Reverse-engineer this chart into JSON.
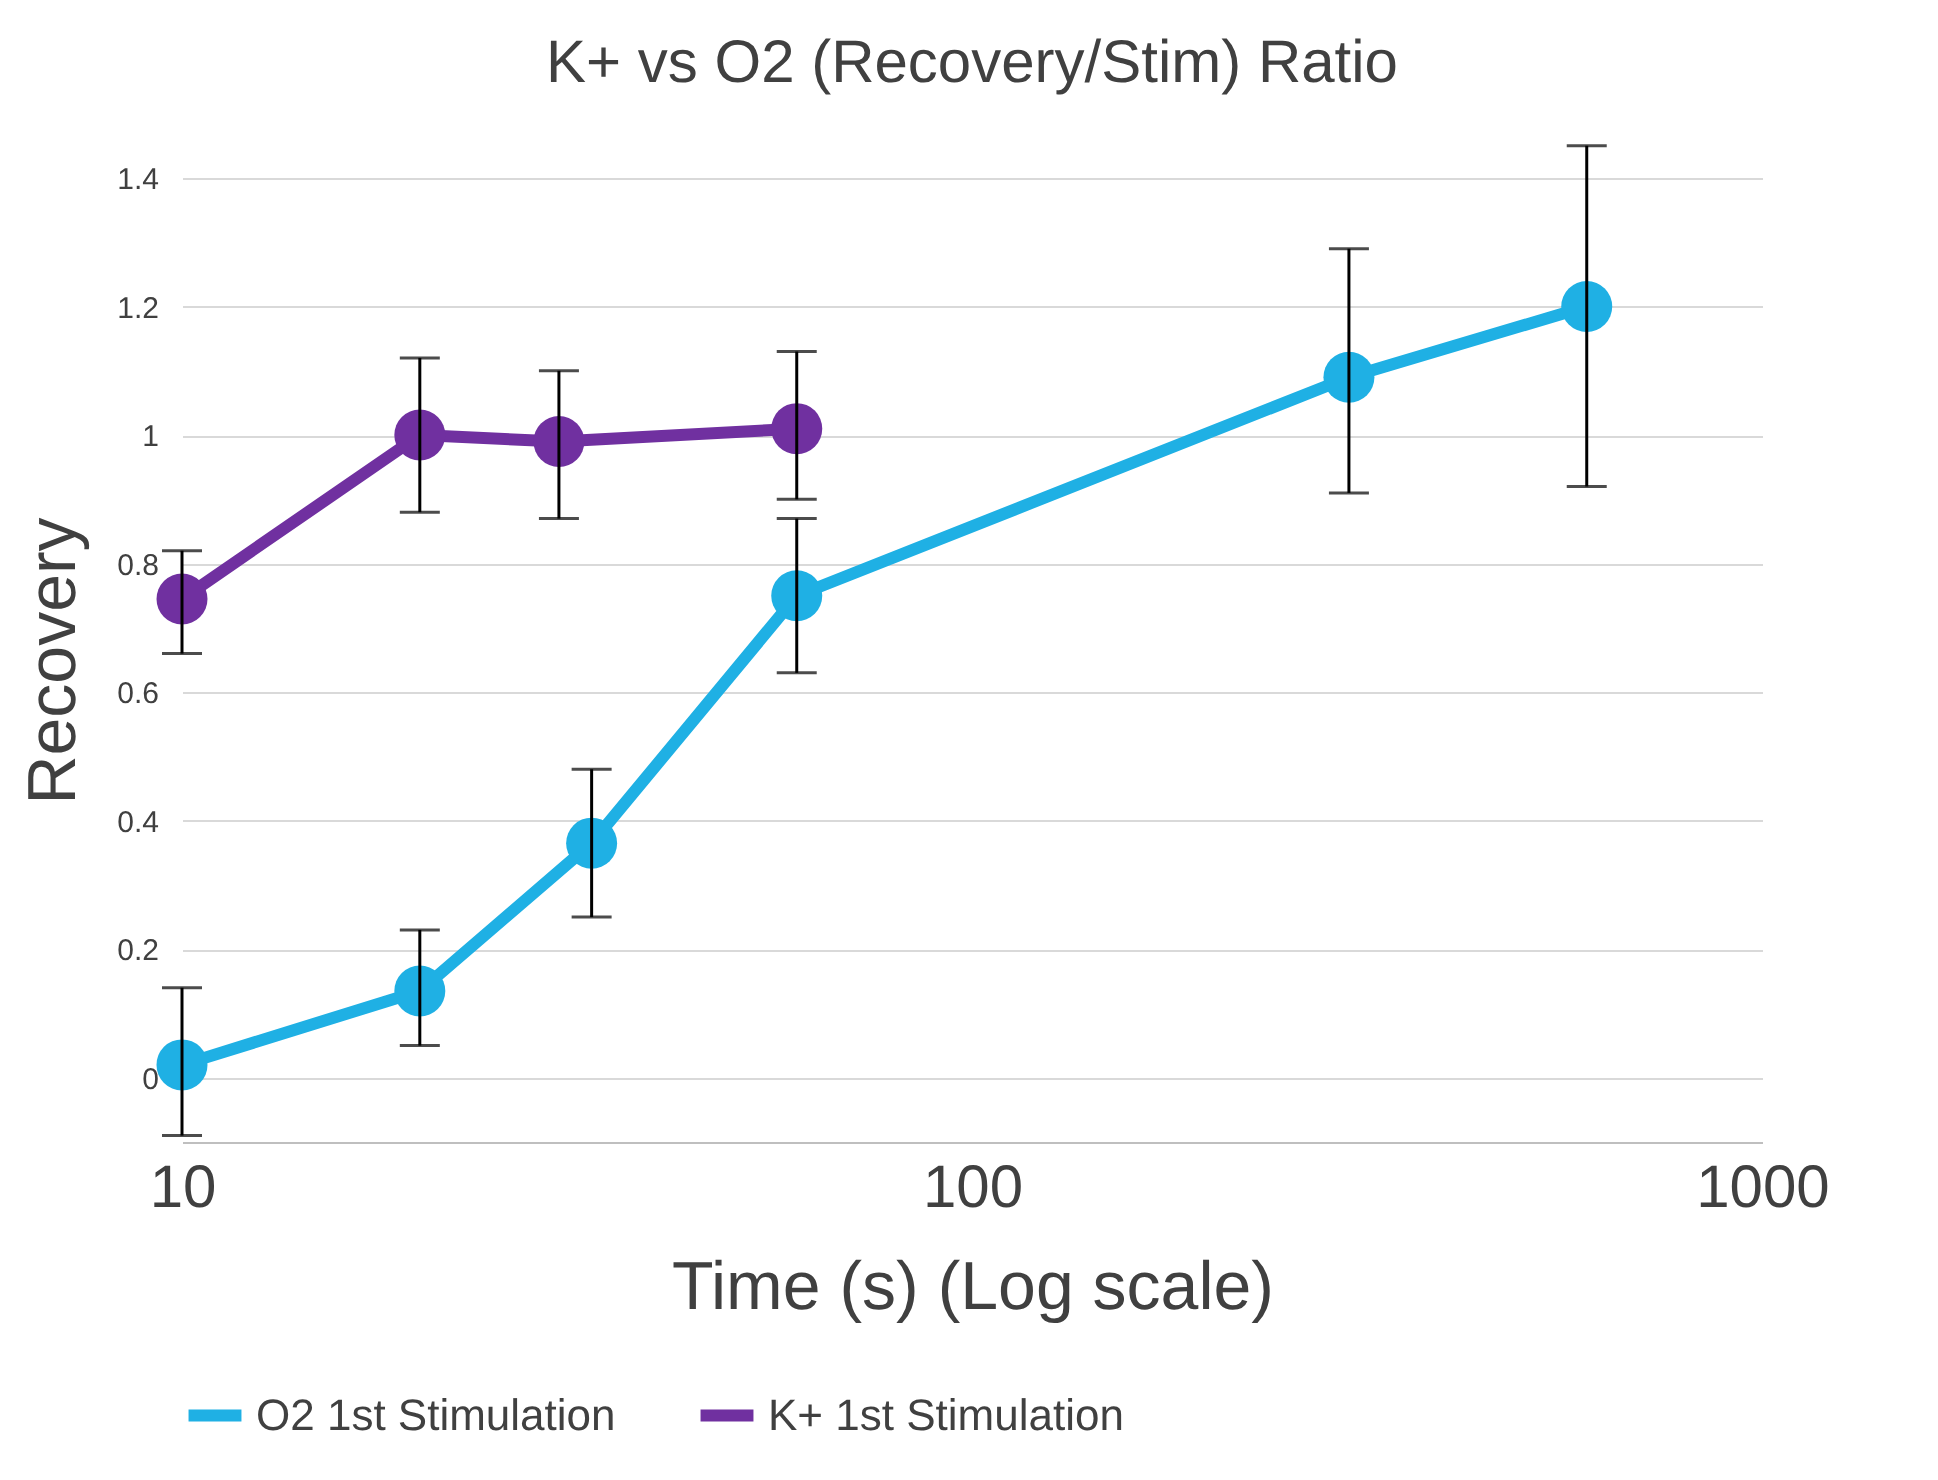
{
  "chart_data": {
    "type": "line",
    "title": "K+ vs O2 (Recovery/Stim) Ratio",
    "xlabel": "Time (s) (Log scale)",
    "ylabel": "Recovery",
    "series": [
      {
        "name": "O2 1st Stimulation",
        "color": "#1fb0e4",
        "x": [
          10,
          20,
          33,
          60,
          300,
          600
        ],
        "values": [
          0.02,
          0.135,
          0.365,
          0.75,
          1.09,
          1.2
        ],
        "errors": [
          [
            -0.09,
            0.14
          ],
          [
            0.05,
            0.23
          ],
          [
            0.25,
            0.48
          ],
          [
            0.63,
            0.87
          ],
          [
            0.91,
            1.29
          ],
          [
            0.92,
            1.45
          ]
        ]
      },
      {
        "name": "K+ 1st Stimulation",
        "color": "#7030a0",
        "x": [
          10,
          20,
          30,
          60
        ],
        "values": [
          0.745,
          1.0,
          0.99,
          1.01
        ],
        "errors": [
          [
            0.66,
            0.82
          ],
          [
            0.88,
            1.12
          ],
          [
            0.87,
            1.1
          ],
          [
            0.9,
            1.13
          ]
        ]
      }
    ],
    "log": "x",
    "xlim": [
      10,
      1000
    ],
    "xticks": [
      10,
      100,
      1000
    ],
    "ylim": [
      -0.1,
      1.4
    ],
    "yticks": [
      0,
      0.2,
      0.4,
      0.6,
      0.8,
      1,
      1.2,
      1.4
    ],
    "grid": "y",
    "legend": "bottom",
    "marker": "circle",
    "line_style": "solid"
  }
}
